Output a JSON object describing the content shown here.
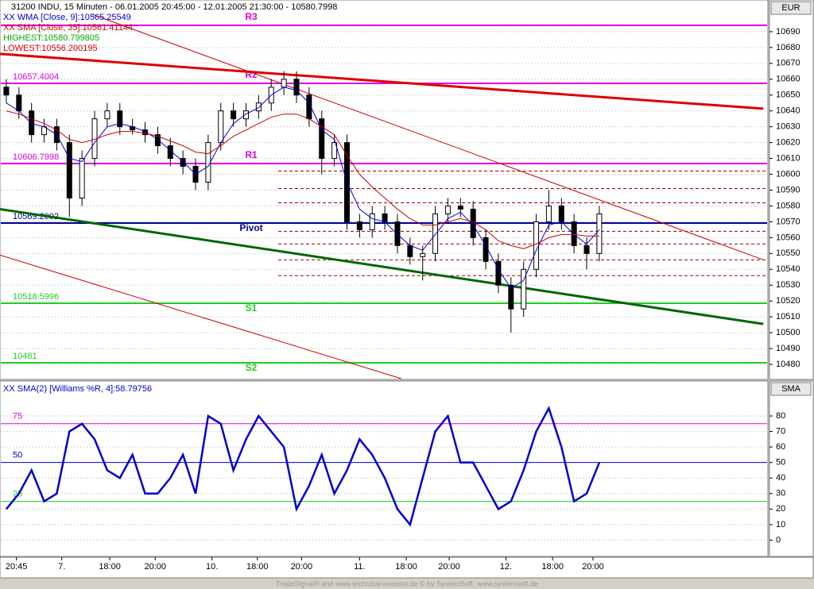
{
  "chart_data": [
    {
      "type": "candlestick",
      "title": "31200 INDU, 15 Minuten - 06.01.2005 20:45:00 - 12.01.2005 21:30:00 - 10580.7998",
      "unit": "EUR",
      "xlim": [
        -0.5,
        60.3
      ],
      "ylim": [
        10471,
        10710
      ],
      "yticks": [
        10480,
        10490,
        10500,
        10510,
        10520,
        10530,
        10540,
        10550,
        10560,
        10570,
        10580,
        10590,
        10600,
        10610,
        10620,
        10630,
        10640,
        10650,
        10660,
        10670,
        10680,
        10690
      ],
      "grid": true,
      "x": [
        0,
        1,
        2,
        3,
        4,
        5,
        6,
        7,
        8,
        9,
        10,
        11,
        12,
        13,
        14,
        15,
        16,
        17,
        18,
        19,
        20,
        21,
        22,
        23,
        24,
        25,
        26,
        27,
        28,
        29,
        30,
        31,
        32,
        33,
        34,
        35,
        36,
        37,
        38,
        39,
        40,
        41,
        42,
        43,
        44,
        45,
        46,
        47
      ],
      "open": [
        10655,
        10650,
        10640,
        10625,
        10630,
        10620,
        10585,
        10610,
        10635,
        10640,
        10630,
        10628,
        10625,
        10618,
        10610,
        10605,
        10595,
        10620,
        10640,
        10635,
        10640,
        10645,
        10655,
        10660,
        10650,
        10635,
        10610,
        10620,
        10570,
        10565,
        10575,
        10570,
        10555,
        10548,
        10550,
        10575,
        10580,
        10578,
        10560,
        10545,
        10530,
        10515,
        10540,
        10570,
        10580,
        10570,
        10555,
        10550
      ],
      "high": [
        10660,
        10655,
        10645,
        10635,
        10635,
        10625,
        10615,
        10640,
        10645,
        10645,
        10635,
        10633,
        10630,
        10623,
        10615,
        10610,
        10625,
        10645,
        10645,
        10645,
        10650,
        10660,
        10665,
        10665,
        10655,
        10640,
        10625,
        10625,
        10575,
        10580,
        10580,
        10575,
        10560,
        10555,
        10580,
        10585,
        10585,
        10583,
        10565,
        10550,
        10535,
        10545,
        10575,
        10590,
        10585,
        10575,
        10560,
        10580
      ],
      "low": [
        10645,
        10635,
        10620,
        10620,
        10615,
        10573,
        10580,
        10605,
        10630,
        10625,
        10625,
        10620,
        10613,
        10605,
        10600,
        10590,
        10590,
        10615,
        10630,
        10630,
        10635,
        10640,
        10650,
        10645,
        10630,
        10600,
        10605,
        10565,
        10560,
        10560,
        10565,
        10550,
        10543,
        10533,
        10545,
        10570,
        10573,
        10555,
        10540,
        10525,
        10500,
        10510,
        10535,
        10565,
        10565,
        10550,
        10540,
        10545
      ],
      "close": [
        10650,
        10640,
        10625,
        10630,
        10620,
        10585,
        10610,
        10635,
        10640,
        10630,
        10628,
        10625,
        10618,
        10610,
        10605,
        10595,
        10620,
        10640,
        10635,
        10640,
        10645,
        10655,
        10660,
        10650,
        10635,
        10610,
        10620,
        10570,
        10565,
        10575,
        10570,
        10555,
        10548,
        10550,
        10575,
        10580,
        10578,
        10560,
        10545,
        10530,
        10515,
        10540,
        10570,
        10580,
        10570,
        10555,
        10550,
        10575
      ],
      "series": [
        {
          "name": "XX WMA [Close, 9]:10565.25549",
          "color": "#0000cc",
          "values": [
            10645,
            10640,
            10632,
            10630,
            10625,
            10610,
            10608,
            10620,
            10630,
            10632,
            10630,
            10627,
            10622,
            10615,
            10608,
            10600,
            10605,
            10620,
            10632,
            10638,
            10642,
            10650,
            10655,
            10653,
            10645,
            10628,
            10622,
            10595,
            10578,
            10572,
            10570,
            10562,
            10555,
            10552,
            10562,
            10572,
            10576,
            10568,
            10555,
            10540,
            10528,
            10533,
            10552,
            10568,
            10570,
            10562,
            10556,
            10565
          ]
        },
        {
          "name": "XX SMA [Close, 35]:10561.41144",
          "color": "#cc0000",
          "values": [
            10640,
            10638,
            10635,
            10632,
            10628,
            10622,
            10620,
            10622,
            10625,
            10627,
            10627,
            10626,
            10624,
            10621,
            10618,
            10614,
            10613,
            10618,
            10624,
            10628,
            10632,
            10636,
            10638,
            10638,
            10635,
            10630,
            10625,
            10612,
            10600,
            10592,
            10585,
            10578,
            10572,
            10568,
            10568,
            10570,
            10572,
            10570,
            10565,
            10558,
            10555,
            10553,
            10556,
            10560,
            10562,
            10562,
            10561,
            10561
          ]
        }
      ],
      "notes": [
        {
          "text": "HIGHEST:10580.799805",
          "color": "#00aa00"
        },
        {
          "text": "LOWEST:10556.200195",
          "color": "#cc0000"
        }
      ],
      "levels": [
        {
          "name": "R3",
          "value": 10694,
          "color": "#e000e0",
          "labeled": false
        },
        {
          "name": "R2",
          "value": 10657.4004,
          "color": "#e000e0",
          "labeled": true
        },
        {
          "name": "R1",
          "value": 10606.7998,
          "color": "#e000e0",
          "labeled": true
        },
        {
          "name": "Pivot",
          "value": 10569.2002,
          "color": "#000099",
          "labeled": true
        },
        {
          "name": "S1",
          "value": 10518.5996,
          "color": "#22cc22",
          "labeled": true
        },
        {
          "name": "S2",
          "value": 10481,
          "color": "#22cc22",
          "labeled": true
        }
      ],
      "dashed_levels": [
        10602,
        10591,
        10582,
        10564,
        10556,
        10546,
        10536
      ],
      "trendlines": [
        {
          "color": "#dd0000",
          "width": 3,
          "x": [
            -0.5,
            60
          ],
          "y": [
            10676,
            10641.4
          ]
        },
        {
          "color": "#006600",
          "width": 3,
          "x": [
            -0.5,
            60
          ],
          "y": [
            10578,
            10505.5
          ]
        },
        {
          "color": "#cc0000",
          "width": 1,
          "x": [
            6.8,
            60
          ],
          "y": [
            10701,
            10546
          ]
        },
        {
          "color": "#cc0000",
          "width": 1,
          "x": [
            -0.5,
            31.3
          ],
          "y": [
            10549,
            10471
          ]
        }
      ]
    },
    {
      "type": "line",
      "unit": "SMA",
      "xlim": [
        -0.5,
        60.3
      ],
      "ylim": [
        -10,
        102
      ],
      "yticks": [
        0,
        10,
        20,
        30,
        40,
        50,
        60,
        70,
        80
      ],
      "grid": true,
      "xticks": [
        {
          "value": 0.8,
          "label": "20:45"
        },
        {
          "value": 4.4,
          "label": "7."
        },
        {
          "value": 8.2,
          "label": "18:00"
        },
        {
          "value": 11.8,
          "label": "20:00"
        },
        {
          "value": 16.3,
          "label": "10."
        },
        {
          "value": 19.9,
          "label": "18:00"
        },
        {
          "value": 23.4,
          "label": "20:00"
        },
        {
          "value": 28,
          "label": "11."
        },
        {
          "value": 31.7,
          "label": "18:00"
        },
        {
          "value": 35.1,
          "label": "20:00"
        },
        {
          "value": 39.6,
          "label": "12."
        },
        {
          "value": 43.3,
          "label": "18:00"
        },
        {
          "value": 46.5,
          "label": "20:00"
        }
      ],
      "levels": [
        {
          "value": 75,
          "color": "#e000e0"
        },
        {
          "value": 50,
          "color": "#0000cc"
        },
        {
          "value": 25,
          "color": "#22cc22"
        }
      ],
      "x": [
        0,
        1,
        2,
        3,
        4,
        5,
        6,
        7,
        8,
        9,
        10,
        11,
        12,
        13,
        14,
        15,
        16,
        17,
        18,
        19,
        20,
        21,
        22,
        23,
        24,
        25,
        26,
        27,
        28,
        29,
        30,
        31,
        32,
        33,
        34,
        35,
        36,
        37,
        38,
        39,
        40,
        41,
        42,
        43,
        44,
        45,
        46,
        47
      ],
      "series": [
        {
          "name": "XX SMA(2) [Williams %R, 4]:58.79756",
          "color": "#0000cc",
          "values": [
            20,
            30,
            45,
            25,
            30,
            70,
            75,
            65,
            45,
            40,
            55,
            30,
            30,
            40,
            55,
            30,
            80,
            75,
            45,
            65,
            80,
            70,
            60,
            20,
            35,
            55,
            30,
            45,
            65,
            55,
            40,
            20,
            10,
            40,
            70,
            80,
            50,
            50,
            35,
            20,
            25,
            45,
            70,
            85,
            60,
            25,
            30,
            50
          ]
        }
      ]
    }
  ],
  "footer": "TradeSignal® and www.technical-investor.de © by SystemSoft, www.systemsoft.de"
}
